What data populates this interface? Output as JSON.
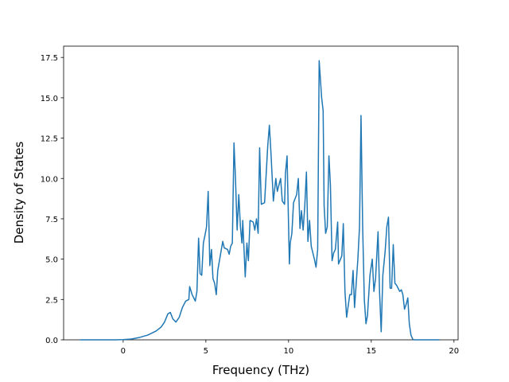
{
  "chart_data": {
    "type": "line",
    "x_label": "Frequency (THz)",
    "y_label": "Density of States",
    "color": "#1f77b4",
    "x": [
      -2.6,
      -1.5,
      -0.5,
      0,
      0.5,
      1.0,
      1.5,
      2.0,
      2.3,
      2.5,
      2.7,
      2.85,
      3.0,
      3.19,
      3.39,
      3.58,
      3.78,
      3.97,
      4.02,
      4.17,
      4.36,
      4.46,
      4.56,
      4.65,
      4.75,
      4.85,
      4.95,
      5.04,
      5.14,
      5.24,
      5.34,
      5.43,
      5.53,
      5.63,
      5.72,
      5.92,
      6.02,
      6.11,
      6.31,
      6.41,
      6.5,
      6.6,
      6.7,
      6.79,
      6.89,
      6.99,
      7.09,
      7.18,
      7.23,
      7.38,
      7.48,
      7.57,
      7.67,
      7.86,
      7.96,
      8.06,
      8.16,
      8.25,
      8.35,
      8.55,
      8.74,
      8.84,
      8.94,
      9.08,
      9.23,
      9.32,
      9.42,
      9.52,
      9.62,
      9.76,
      9.81,
      9.91,
      10.05,
      10.1,
      10.2,
      10.3,
      10.49,
      10.59,
      10.69,
      10.78,
      10.88,
      10.98,
      11.08,
      11.17,
      11.27,
      11.37,
      11.56,
      11.66,
      11.76,
      11.85,
      12.0,
      12.09,
      12.15,
      12.24,
      12.34,
      12.44,
      12.53,
      12.63,
      12.73,
      12.83,
      12.97,
      13.02,
      13.22,
      13.31,
      13.41,
      13.51,
      13.7,
      13.8,
      13.9,
      13.99,
      14.19,
      14.29,
      14.38,
      14.48,
      14.58,
      14.68,
      14.77,
      14.92,
      15.06,
      15.16,
      15.26,
      15.41,
      15.5,
      15.6,
      15.7,
      15.84,
      15.94,
      16.04,
      16.14,
      16.23,
      16.33,
      16.43,
      16.52,
      16.62,
      16.72,
      16.82,
      16.91,
      17.01,
      17.11,
      17.21,
      17.3,
      17.4,
      17.5,
      17.6,
      19.13
    ],
    "values": [
      0,
      0,
      0,
      0.01,
      0.05,
      0.15,
      0.3,
      0.55,
      0.8,
      1.1,
      1.6,
      1.7,
      1.3,
      1.1,
      1.4,
      2.0,
      2.4,
      2.5,
      3.3,
      2.8,
      2.4,
      3.0,
      6.3,
      4.1,
      4.0,
      6.0,
      6.5,
      7.0,
      9.2,
      4.6,
      5.6,
      3.8,
      3.5,
      2.8,
      4.3,
      5.5,
      6.1,
      5.7,
      5.6,
      5.3,
      5.8,
      6.0,
      12.2,
      10.0,
      6.8,
      9.0,
      7.0,
      6.0,
      7.4,
      3.9,
      6.0,
      4.9,
      7.4,
      7.3,
      6.8,
      7.5,
      6.6,
      11.9,
      8.4,
      8.5,
      12.0,
      13.3,
      11.5,
      8.6,
      10.0,
      9.2,
      9.6,
      10.0,
      8.6,
      8.4,
      10.3,
      11.4,
      4.7,
      6.0,
      6.6,
      8.5,
      9.0,
      10.0,
      6.9,
      8.0,
      6.8,
      8.3,
      10.4,
      6.1,
      7.4,
      5.8,
      5.0,
      4.5,
      5.6,
      17.3,
      15.0,
      14.2,
      8.3,
      6.6,
      7.0,
      11.4,
      9.6,
      4.9,
      5.4,
      5.6,
      7.3,
      4.7,
      5.2,
      7.2,
      3.0,
      1.4,
      2.8,
      2.8,
      4.3,
      2.0,
      5.0,
      7.0,
      13.9,
      7.0,
      2.5,
      1.0,
      1.5,
      4.0,
      5.0,
      3.0,
      3.8,
      6.7,
      3.0,
      0.5,
      4.0,
      5.5,
      7.0,
      7.6,
      3.2,
      3.2,
      5.9,
      3.5,
      3.4,
      3.2,
      3.0,
      3.1,
      2.8,
      1.9,
      2.2,
      2.6,
      1.0,
      0.3,
      0.05,
      0,
      0
    ],
    "xlim": [
      -3.6,
      20.25
    ],
    "ylim": [
      0,
      18.2
    ],
    "xticks": [
      0,
      5,
      10,
      15,
      20
    ],
    "yticks": [
      {
        "value": 0,
        "label": "0.0"
      },
      {
        "value": 2.5,
        "label": "2.5"
      },
      {
        "value": 5,
        "label": "5.0"
      },
      {
        "value": 7.5,
        "label": "7.5"
      },
      {
        "value": 10,
        "label": "10.0"
      },
      {
        "value": 12.5,
        "label": "12.5"
      },
      {
        "value": 15,
        "label": "15.0"
      },
      {
        "value": 17.5,
        "label": "17.5"
      }
    ]
  }
}
